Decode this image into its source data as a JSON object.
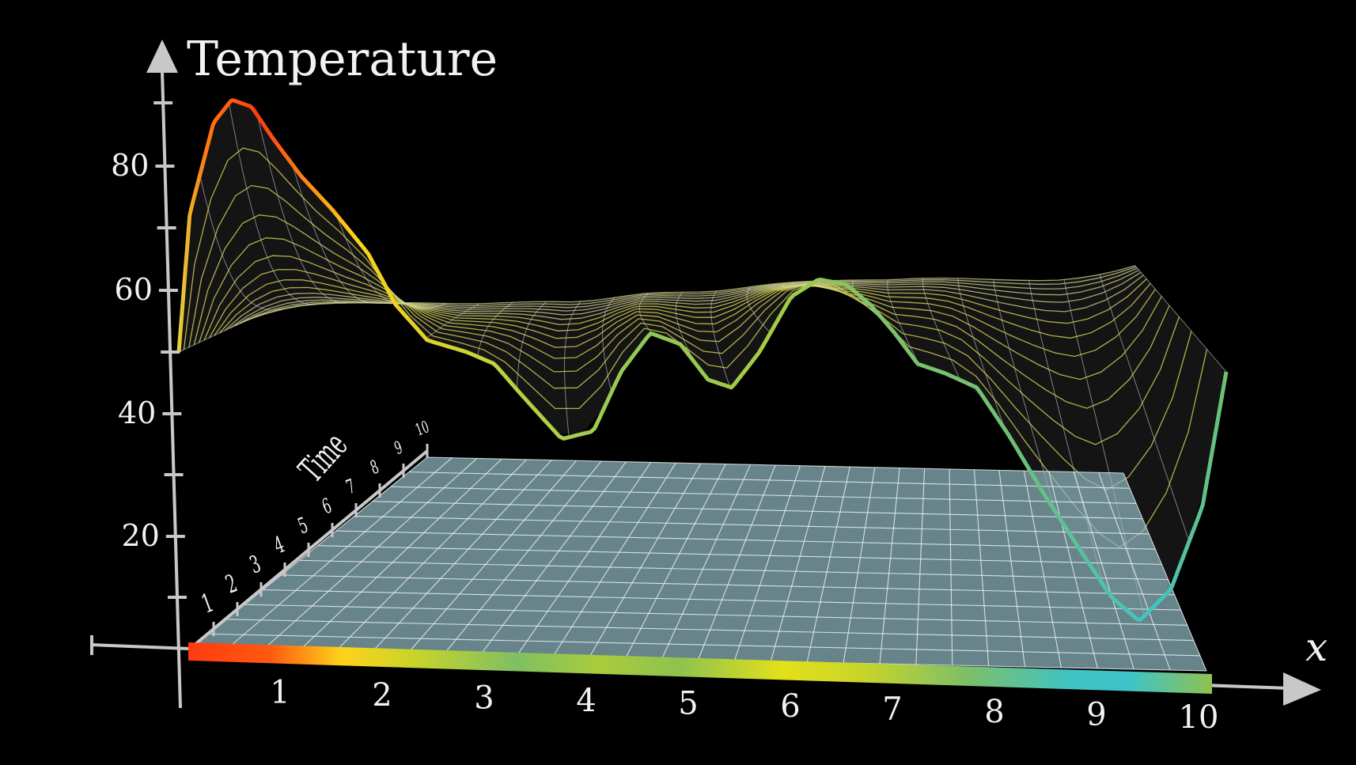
{
  "axes": {
    "temperature_label": "Temperature",
    "x_label": "x",
    "time_label": "Time",
    "temperature_ticks": [
      "20",
      "40",
      "60",
      "80"
    ],
    "x_ticks": [
      "1",
      "2",
      "3",
      "4",
      "5",
      "6",
      "7",
      "8",
      "9",
      "10"
    ],
    "time_ticks": [
      "1",
      "2",
      "3",
      "4",
      "5",
      "6",
      "7",
      "8",
      "9",
      "10"
    ]
  },
  "colors": {
    "background": "#000000",
    "axis": "#c8c8c8",
    "plane": "#6f8f97",
    "hot": "#ff4a10",
    "warm": "#ffd21a",
    "mid": "#93c84a",
    "cool": "#38c5c8"
  }
}
